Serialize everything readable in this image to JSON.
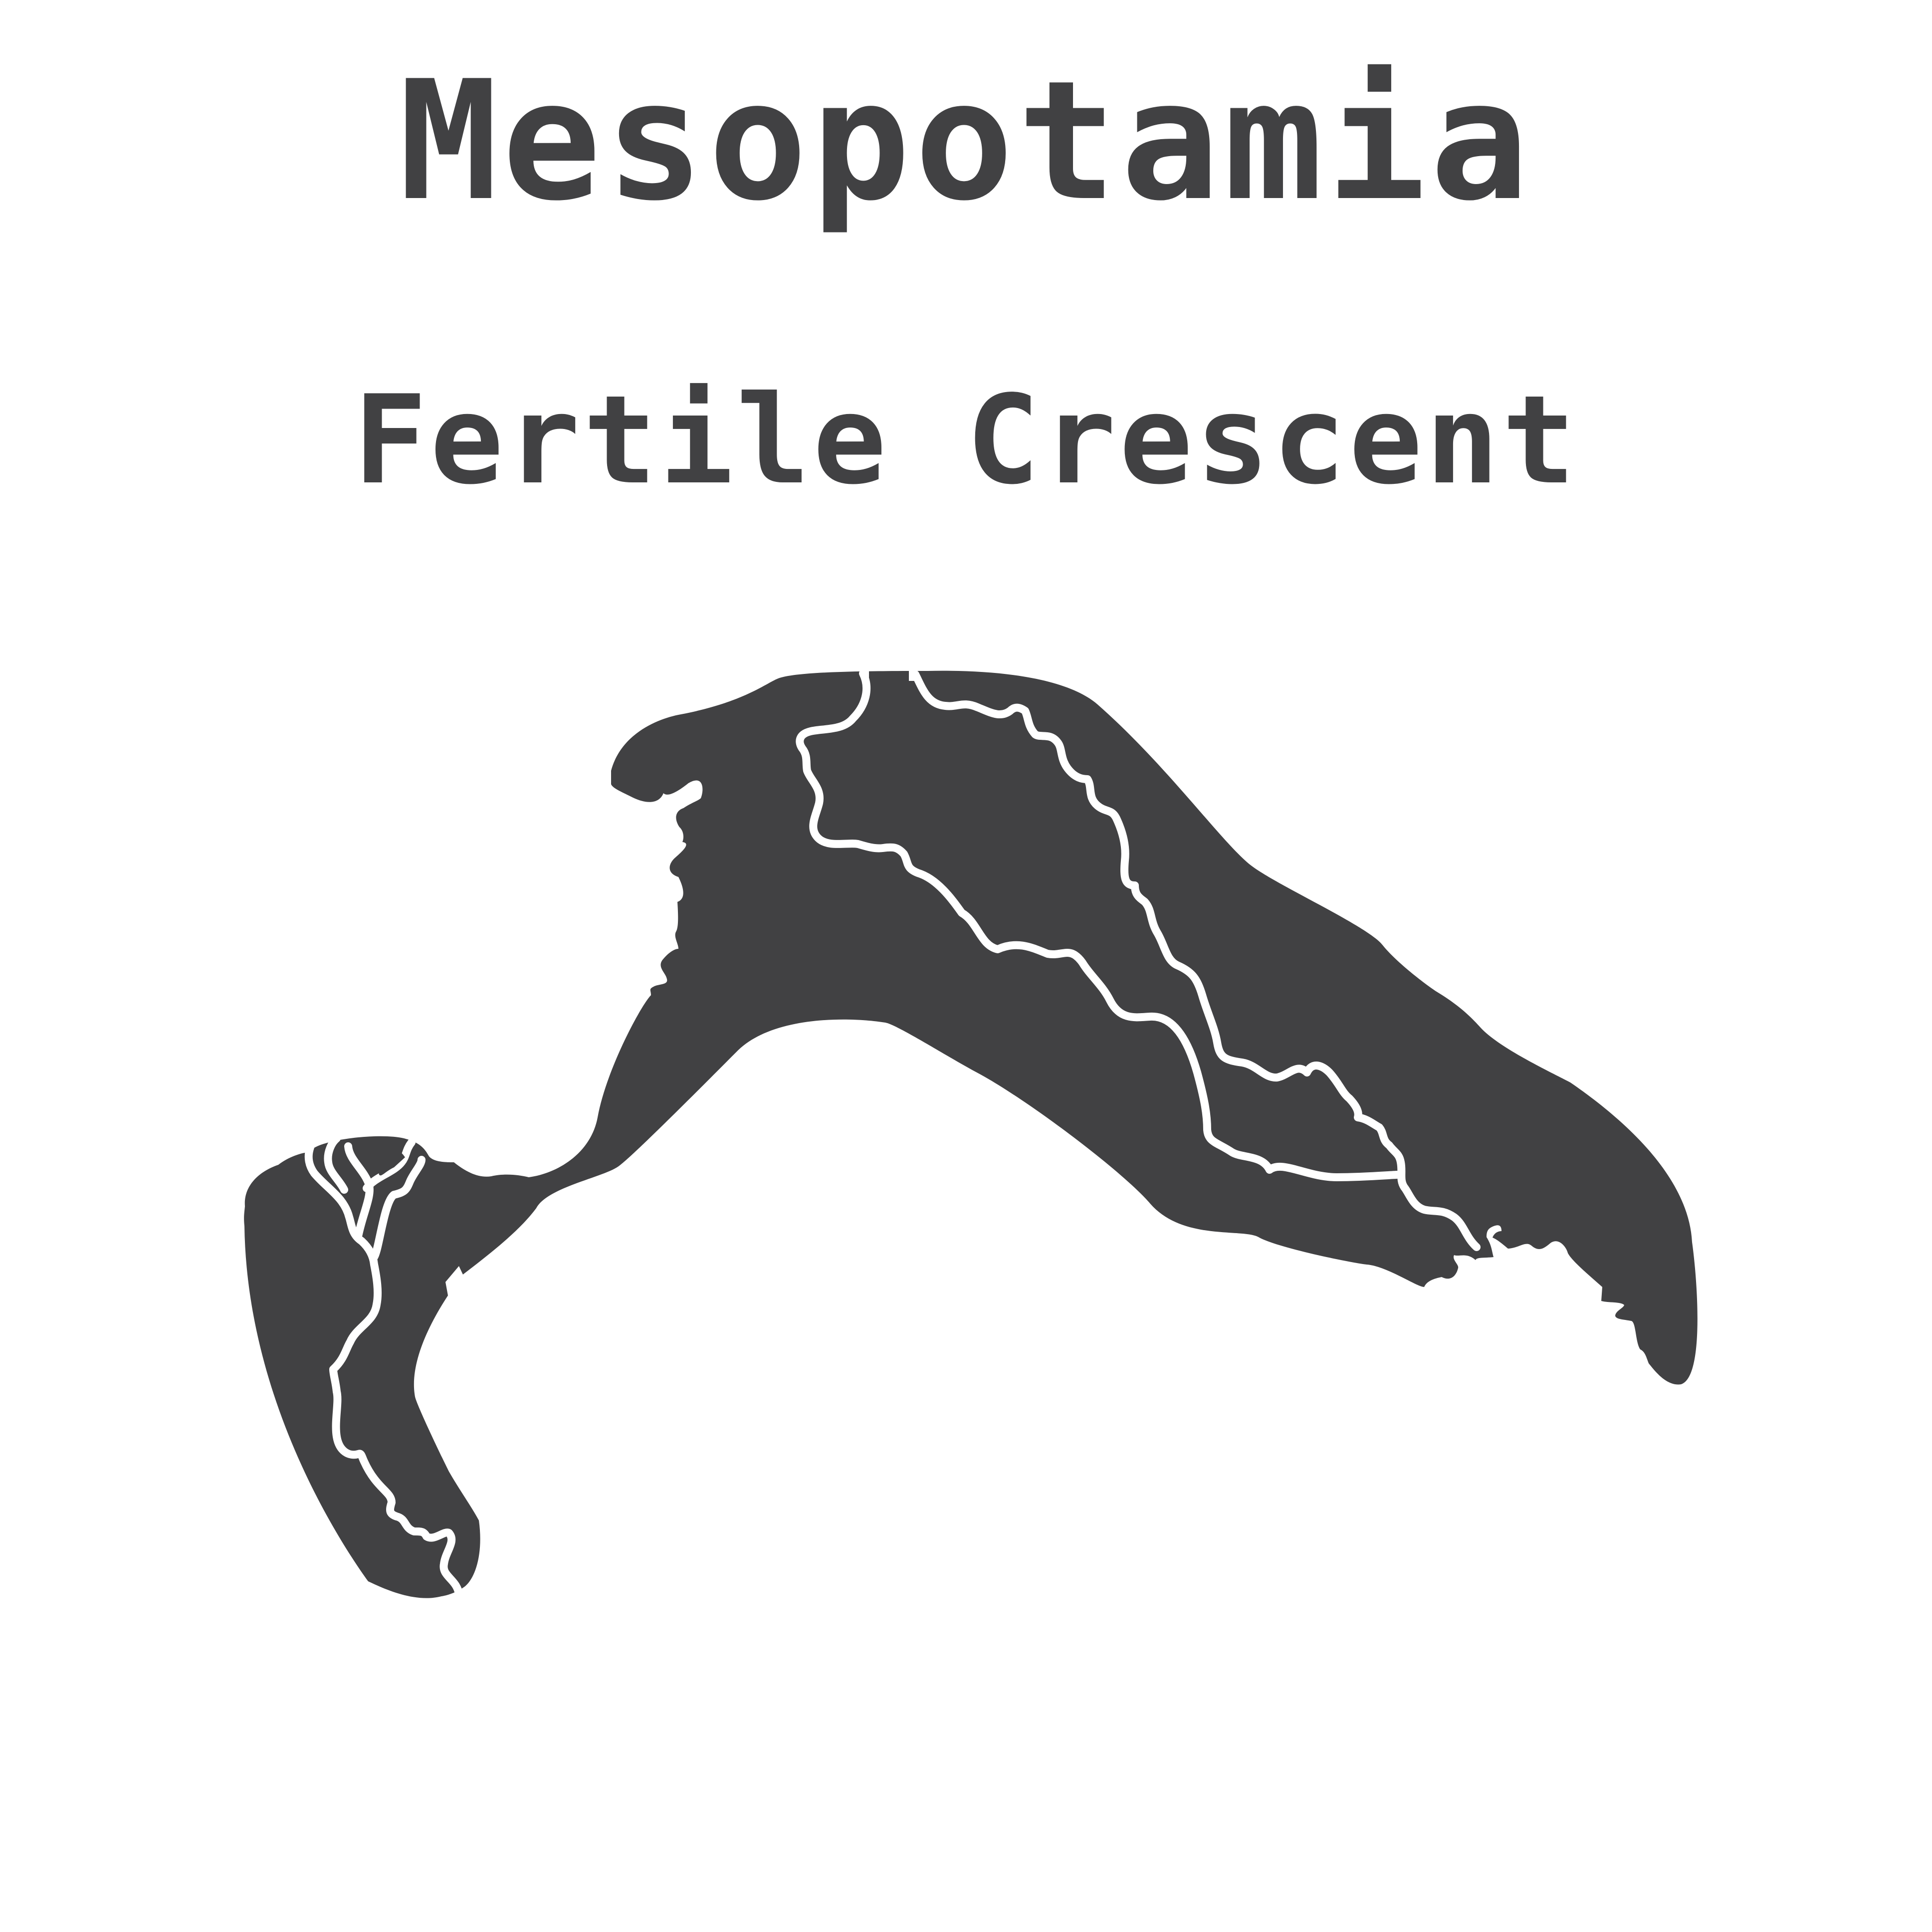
{
  "title": "Mesopotamia",
  "subtitle": "Fertile Crescent",
  "colors": {
    "background": "#ffffff",
    "land": "#414143",
    "rivers": "#ffffff",
    "text": "#414143"
  }
}
